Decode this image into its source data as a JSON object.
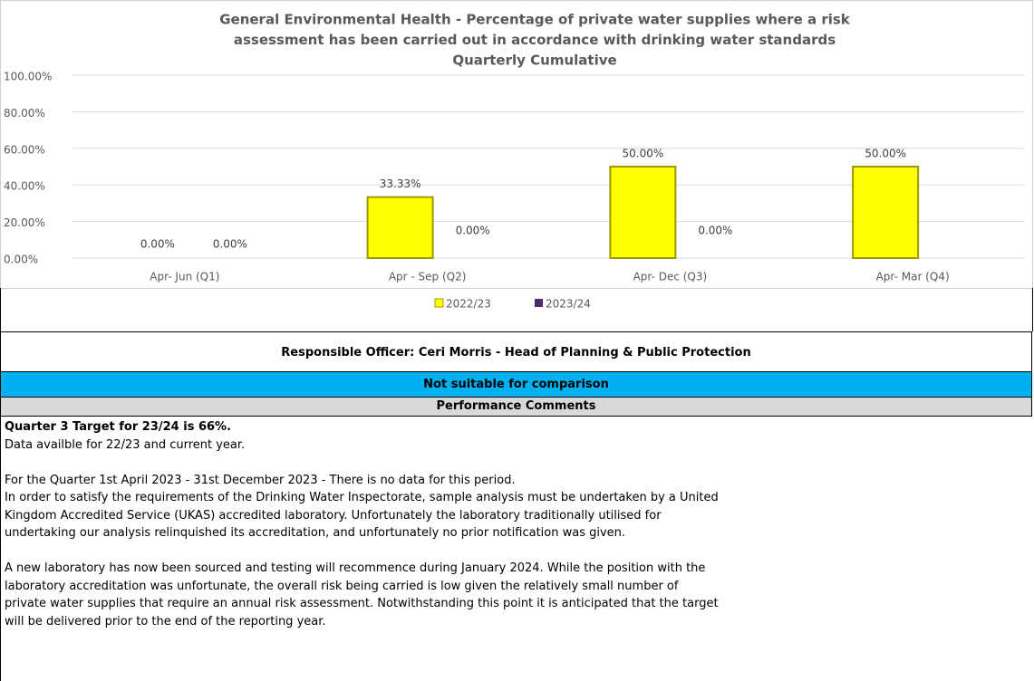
{
  "chart_data": {
    "type": "bar",
    "title": [
      "General Environmental Health - Percentage of private water supplies where a risk",
      "assessment has been carried out in accordance with drinking water standards",
      "Quarterly Cumulative"
    ],
    "categories": [
      "Apr- Jun  (Q1)",
      "Apr - Sep  (Q2)",
      "Apr- Dec  (Q3)",
      "Apr- Mar  (Q4)"
    ],
    "series": [
      {
        "name": "2022/23",
        "color": "#ffff00",
        "values": [
          0,
          33.33,
          50,
          50
        ],
        "value_labels": [
          "0.00%",
          "33.33%",
          "50.00%",
          "50.00%"
        ]
      },
      {
        "name": "2023/24",
        "color": "#4b2a6e",
        "values": [
          0,
          0,
          0,
          null
        ],
        "value_labels": [
          "0.00%",
          "0.00%",
          "0.00%",
          null
        ]
      }
    ],
    "ylim": [
      0,
      100
    ],
    "yticks": [
      {
        "value": 0,
        "label": "0.00%"
      },
      {
        "value": 20,
        "label": "20.00%"
      },
      {
        "value": 40,
        "label": "40.00%"
      },
      {
        "value": 60,
        "label": "60.00%"
      },
      {
        "value": 80,
        "label": "80.00%"
      },
      {
        "value": 100,
        "label": "100.00%"
      }
    ],
    "grid": true,
    "legend": "bottom"
  },
  "officer": "Responsible Officer:  Ceri Morris - Head of Planning & Public Protection",
  "comparison": "Not suitable for comparison",
  "comments": {
    "title": "Performance Comments",
    "heading": "Quarter 3 Target for 23/24 is 66%.",
    "paragraphs": [
      [
        "Data availble for 22/23 and current year."
      ],
      [
        "For the Quarter 1st April 2023 - 31st December 2023 - There is no data for this period.",
        "In order to satisfy the requirements of the Drinking Water Inspectorate, sample analysis must be undertaken by a United",
        "Kingdom Accredited Service (UKAS) accredited laboratory. Unfortunately the laboratory traditionally utilised for",
        "undertaking our analysis  relinquished its accreditation, and unfortunately no prior notification was given."
      ],
      [
        "A new laboratory has now been sourced and testing will recommence during January 2024. While the position with the",
        "laboratory accreditation was unfortunate, the overall risk being carried is low given the relatively small number of",
        "private water supplies that require an annual risk assessment. Notwithstanding this point it is anticipated that the target",
        "will be delivered prior to the end of the reporting year."
      ]
    ]
  }
}
